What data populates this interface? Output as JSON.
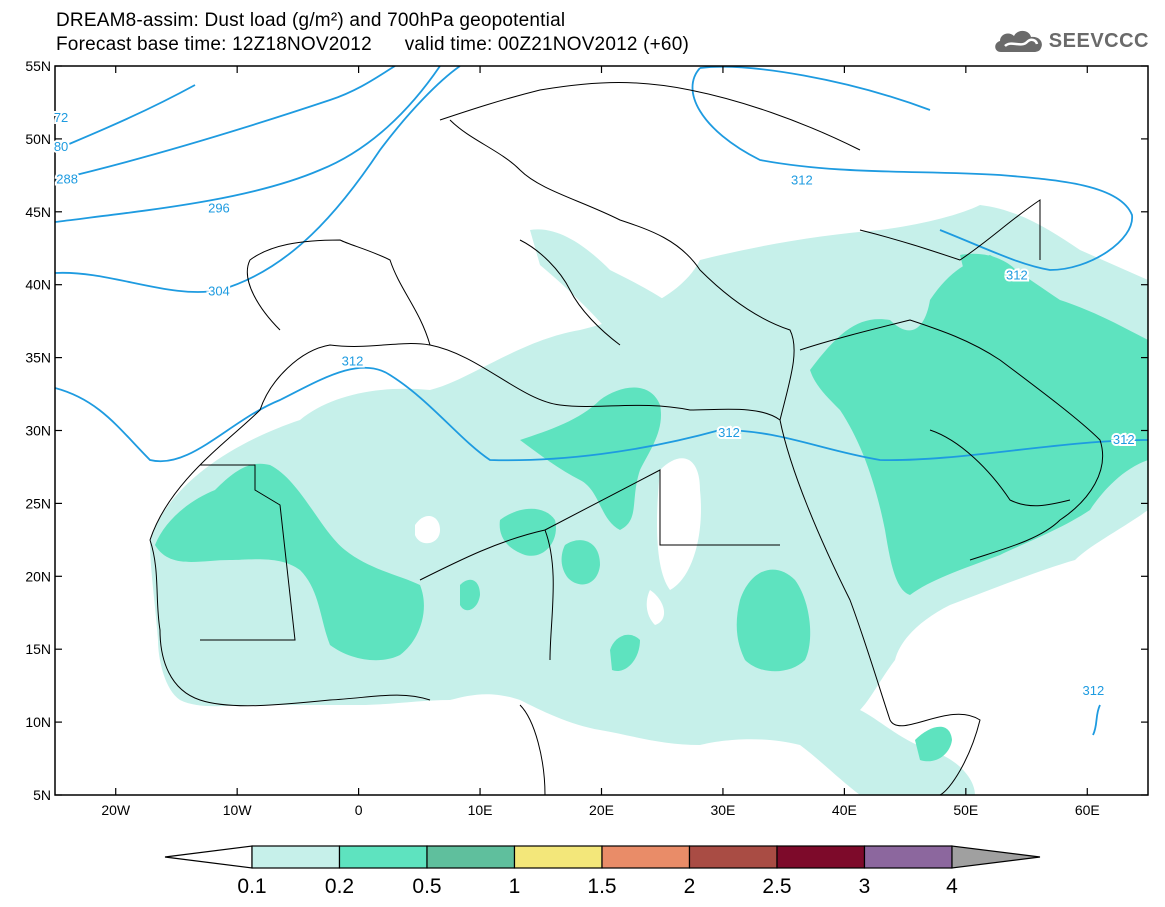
{
  "title": {
    "line1": "DREAM8-assim: Dust load (g/m²) and 700hPa geopotential",
    "line2": "Forecast base time: 12Z18NOV2012      valid time: 00Z21NOV2012 (+60)"
  },
  "logo": {
    "text": "SEEVCCC",
    "icon": "cloud-logo-icon"
  },
  "axes": {
    "lat_labels": [
      "55N",
      "50N",
      "45N",
      "40N",
      "35N",
      "30N",
      "25N",
      "20N",
      "15N",
      "10N",
      "5N"
    ],
    "lat_values": [
      55,
      50,
      45,
      40,
      35,
      30,
      25,
      20,
      15,
      10,
      5
    ],
    "lon_labels": [
      "20W",
      "10W",
      "0",
      "10E",
      "20E",
      "30E",
      "40E",
      "50E",
      "60E"
    ],
    "lon_values": [
      -20,
      -10,
      0,
      10,
      20,
      30,
      40,
      50,
      60
    ],
    "lon_range": [
      -25,
      65
    ],
    "lat_range": [
      5,
      55
    ]
  },
  "contours": {
    "color": "#1e9be0",
    "labels": [
      {
        "text": "72",
        "lon": -24.5,
        "lat": 51.5
      },
      {
        "text": "80",
        "lon": -24.5,
        "lat": 49.5
      },
      {
        "text": "288",
        "lon": -24,
        "lat": 47.3
      },
      {
        "text": "296",
        "lon": -11.5,
        "lat": 45.3
      },
      {
        "text": "304",
        "lon": -11.5,
        "lat": 39.6
      },
      {
        "text": "312",
        "lon": -0.5,
        "lat": 34.8
      },
      {
        "text": "312",
        "lon": 30.5,
        "lat": 29.9
      },
      {
        "text": "312",
        "lon": 36.5,
        "lat": 47.2
      },
      {
        "text": "312",
        "lon": 54.2,
        "lat": 40.7
      },
      {
        "text": "312",
        "lon": 63,
        "lat": 29.4
      },
      {
        "text": "312",
        "lon": 60.5,
        "lat": 12.2
      }
    ]
  },
  "legend": {
    "colors": [
      "#c6f0ea",
      "#5ee3bf",
      "#5fbf9d",
      "#f3e77a",
      "#e98c68",
      "#a94c44",
      "#7d0a2a",
      "#8c679e"
    ],
    "end_left_color": "#ffffff",
    "end_right_color": "#a0a0a0",
    "labels": [
      "0.1",
      "0.2",
      "0.5",
      "1",
      "1.5",
      "2",
      "2.5",
      "3",
      "4"
    ]
  }
}
